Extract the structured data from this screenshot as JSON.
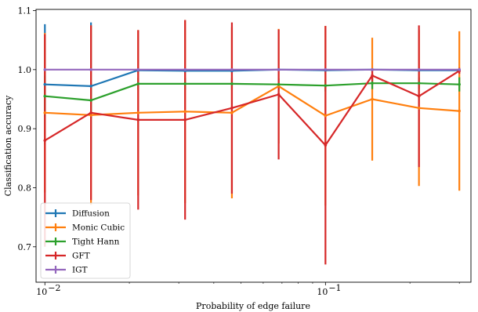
{
  "chart_data": {
    "type": "line",
    "xscale": "log",
    "xlabel": "Probability of edge failure",
    "ylabel": "Classification accuracy",
    "xlim": [
      0.0093,
      0.33
    ],
    "ylim": [
      0.64,
      1.102
    ],
    "x": [
      0.01,
      0.0146,
      0.0215,
      0.0316,
      0.0464,
      0.0681,
      0.1,
      0.1468,
      0.2154,
      0.3
    ],
    "yticks": [
      0.7,
      0.8,
      0.9,
      1.0,
      1.1
    ],
    "ytick_labels": [
      "0.7",
      "0.8",
      "0.9",
      "1.0",
      "1.1"
    ],
    "xticks": [
      0.01,
      0.1
    ],
    "xtick_labels": [
      "10",
      "10"
    ],
    "xtick_exponents": [
      "−2",
      "−1"
    ],
    "legend_position": "lower-left",
    "grid": false,
    "series": [
      {
        "name": "Diffusion",
        "color": "#1f77b4",
        "values": [
          0.975,
          0.972,
          0.999,
          0.998,
          0.998,
          1.0,
          0.999,
          1.0,
          0.999,
          0.999
        ],
        "errors": [
          0.102,
          0.108,
          0.004,
          0.003,
          0.003,
          0.002,
          0.003,
          0.002,
          0.003,
          0.003
        ]
      },
      {
        "name": "Monic Cubic",
        "color": "#ff7f0e",
        "values": [
          0.927,
          0.923,
          0.927,
          0.929,
          0.927,
          0.972,
          0.922,
          0.95,
          0.935,
          0.93
        ],
        "errors": [
          0.135,
          0.152,
          0.14,
          0.155,
          0.145,
          0.097,
          0.152,
          0.104,
          0.132,
          0.135
        ]
      },
      {
        "name": "Tight Hann",
        "color": "#2ca02c",
        "values": [
          0.955,
          0.948,
          0.976,
          0.976,
          0.976,
          0.975,
          0.973,
          0.977,
          0.977,
          0.975
        ],
        "errors": [
          0.035,
          0.03,
          0.01,
          0.01,
          0.01,
          0.01,
          0.01,
          0.01,
          0.01,
          0.012
        ]
      },
      {
        "name": "GFT",
        "color": "#d62728",
        "values": [
          0.88,
          0.927,
          0.915,
          0.915,
          0.935,
          0.958,
          0.872,
          0.99,
          0.955,
          0.998
        ],
        "errors": [
          0.18,
          0.148,
          0.152,
          0.169,
          0.145,
          0.11,
          0.202,
          0.01,
          0.12,
          0.005
        ]
      },
      {
        "name": "IGT",
        "color": "#9467bd",
        "values": [
          1.0,
          1.0,
          1.0,
          1.0,
          1.0,
          1.0,
          1.0,
          1.0,
          1.0,
          1.0
        ],
        "errors": [
          0.002,
          0.002,
          0.002,
          0.002,
          0.002,
          0.002,
          0.002,
          0.002,
          0.002,
          0.002
        ]
      }
    ]
  }
}
